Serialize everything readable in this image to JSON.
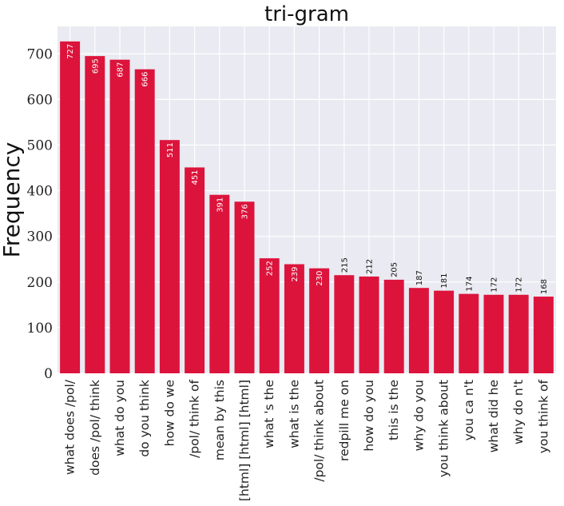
{
  "chart_data": {
    "type": "bar",
    "title": "tri-gram",
    "xlabel": "",
    "ylabel": "Frequency",
    "ylim": [
      0,
      760
    ],
    "yticks": [
      0,
      100,
      200,
      300,
      400,
      500,
      600,
      700
    ],
    "grid": true,
    "bar_color": "#dc143c",
    "background_color": "#eaeaf2",
    "categories": [
      "what does /pol/",
      "does /pol/ think",
      "what do you",
      "do you think",
      "how do we",
      "/pol/ think of",
      "mean by this",
      "[html] [html] [html]",
      "what 's the",
      "what is the",
      "/pol/ think about",
      "redpill me on",
      "how do you",
      "this is the",
      "why do you",
      "you think about",
      "you ca n't",
      "what did he",
      "why do n't",
      "you think of"
    ],
    "values": [
      727,
      695,
      687,
      666,
      511,
      451,
      391,
      376,
      252,
      239,
      230,
      215,
      212,
      205,
      187,
      181,
      174,
      172,
      172,
      168
    ]
  }
}
